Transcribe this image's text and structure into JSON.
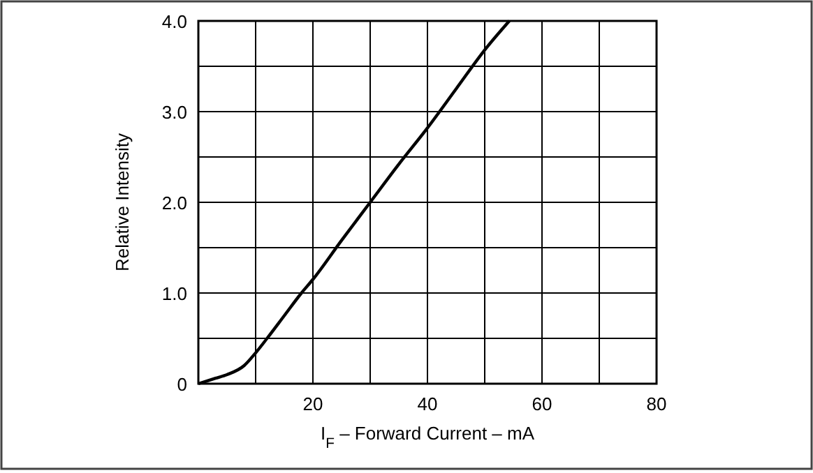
{
  "chart_data": {
    "type": "line",
    "xlabel": "I$_{F}$ – Forward Current – mA",
    "ylabel": "Relative Intensity",
    "x": [
      0,
      3,
      5,
      8,
      10,
      12,
      15,
      18,
      20,
      25,
      30,
      35,
      40,
      45,
      50,
      54.3
    ],
    "series": [
      {
        "color": "#000000",
        "values": [
          0,
          0.06,
          0.1,
          0.2,
          0.34,
          0.5,
          0.75,
          1.0,
          1.15,
          1.58,
          2.0,
          2.42,
          2.82,
          3.25,
          3.68,
          4.0
        ]
      }
    ],
    "xlim": [
      0,
      80
    ],
    "ylim": [
      0,
      4
    ],
    "xticks": [
      {
        "value": 0,
        "label": null
      },
      {
        "value": 10,
        "label": null
      },
      20,
      {
        "value": 30,
        "label": null
      },
      40,
      {
        "value": 50,
        "label": null
      },
      60,
      {
        "value": 70,
        "label": null
      },
      80
    ],
    "yticks": [
      0,
      {
        "value": 0.5,
        "label": null
      },
      {
        "value": 1,
        "label": "1.0"
      },
      {
        "value": 1.5,
        "label": null
      },
      {
        "value": 2,
        "label": "2.0"
      },
      {
        "value": 2.5,
        "label": null
      },
      {
        "value": 3,
        "label": "3.0"
      },
      {
        "value": 3.5,
        "label": null
      },
      {
        "value": 4,
        "label": "4.0"
      }
    ],
    "grid": true,
    "marker": "none",
    "line_style": "solid"
  }
}
